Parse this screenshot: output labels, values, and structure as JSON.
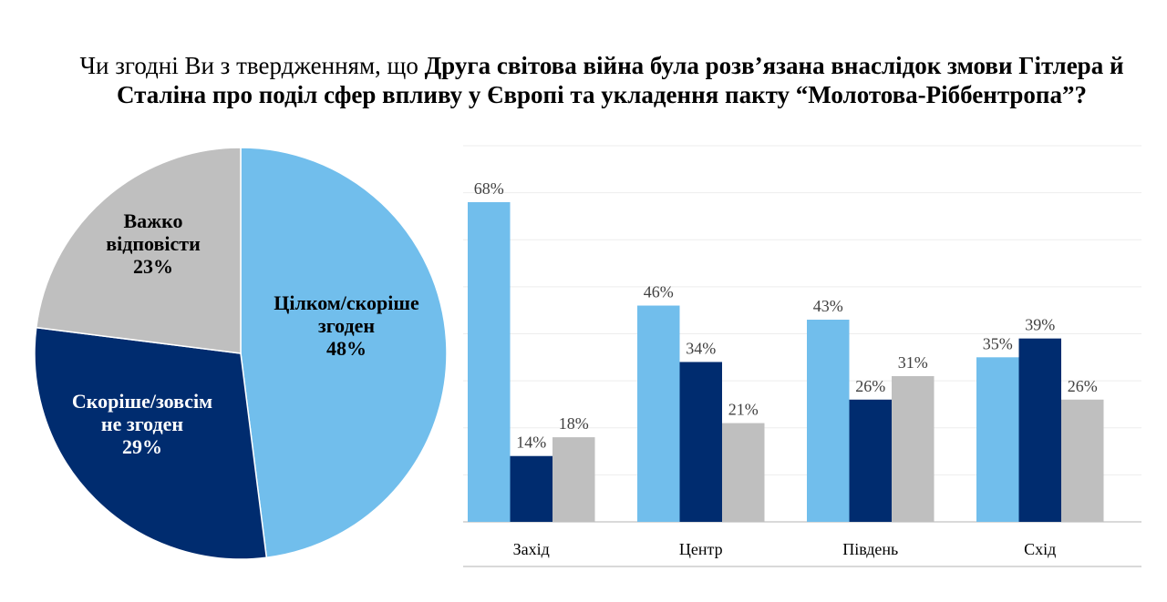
{
  "title": {
    "prefix": "Чи згодні Ви з твердженням, що ",
    "bold": "Друга світова війна була розв’язана внаслідок змови Гітлера й Сталіна про поділ сфер впливу у Європі та укладення пакту “Молотова-Ріббентропа”?"
  },
  "colors": {
    "agree": "#71BEEC",
    "disagree": "#002C6F",
    "hard": "#BFBFBF"
  },
  "chart_data": [
    {
      "type": "pie",
      "slices": [
        {
          "label_lines": [
            "Цілком/скоріше",
            "згоден"
          ],
          "value": 48,
          "value_label": "48%"
        },
        {
          "label_lines": [
            "Скоріше/зовсім",
            "не згоден"
          ],
          "value": 29,
          "value_label": "29%"
        },
        {
          "label_lines": [
            "Важко",
            "відповісти"
          ],
          "value": 23,
          "value_label": "23%"
        }
      ]
    },
    {
      "type": "bar",
      "categories": [
        "Захід",
        "Центр",
        "Південь",
        "Схід"
      ],
      "series": [
        {
          "values": [
            68,
            46,
            43,
            35
          ],
          "labels": [
            "68%",
            "46%",
            "43%",
            "35%"
          ]
        },
        {
          "values": [
            14,
            34,
            26,
            39
          ],
          "labels": [
            "14%",
            "34%",
            "26%",
            "39%"
          ]
        },
        {
          "values": [
            18,
            21,
            31,
            26
          ],
          "labels": [
            "18%",
            "21%",
            "31%",
            "26%"
          ]
        }
      ],
      "ylim": [
        0,
        80
      ],
      "grid": true,
      "y_axis_labels_shown": false
    }
  ]
}
